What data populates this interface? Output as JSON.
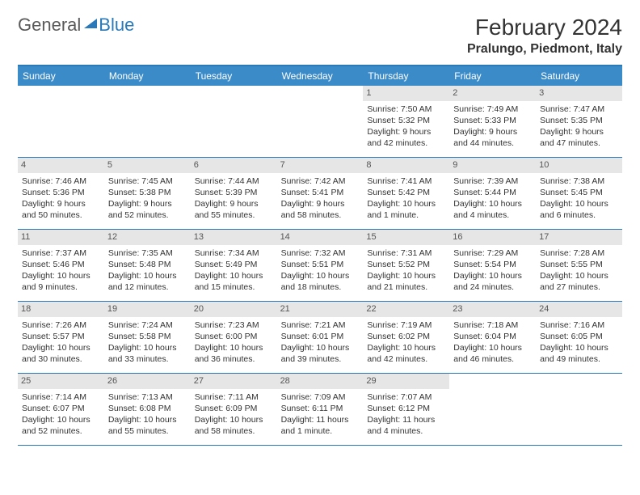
{
  "logo": {
    "text_gray": "General",
    "text_blue": "Blue"
  },
  "title": "February 2024",
  "location": "Pralungo, Piedmont, Italy",
  "colors": {
    "header_bg": "#3b8bc9",
    "header_border": "#2a7ab9",
    "daynum_bg": "#e6e6e6",
    "text": "#333333",
    "logo_gray": "#5a5a5a",
    "logo_blue": "#2a7ab9"
  },
  "day_names": [
    "Sunday",
    "Monday",
    "Tuesday",
    "Wednesday",
    "Thursday",
    "Friday",
    "Saturday"
  ],
  "weeks": [
    [
      null,
      null,
      null,
      null,
      {
        "n": "1",
        "sunrise": "Sunrise: 7:50 AM",
        "sunset": "Sunset: 5:32 PM",
        "day1": "Daylight: 9 hours",
        "day2": "and 42 minutes."
      },
      {
        "n": "2",
        "sunrise": "Sunrise: 7:49 AM",
        "sunset": "Sunset: 5:33 PM",
        "day1": "Daylight: 9 hours",
        "day2": "and 44 minutes."
      },
      {
        "n": "3",
        "sunrise": "Sunrise: 7:47 AM",
        "sunset": "Sunset: 5:35 PM",
        "day1": "Daylight: 9 hours",
        "day2": "and 47 minutes."
      }
    ],
    [
      {
        "n": "4",
        "sunrise": "Sunrise: 7:46 AM",
        "sunset": "Sunset: 5:36 PM",
        "day1": "Daylight: 9 hours",
        "day2": "and 50 minutes."
      },
      {
        "n": "5",
        "sunrise": "Sunrise: 7:45 AM",
        "sunset": "Sunset: 5:38 PM",
        "day1": "Daylight: 9 hours",
        "day2": "and 52 minutes."
      },
      {
        "n": "6",
        "sunrise": "Sunrise: 7:44 AM",
        "sunset": "Sunset: 5:39 PM",
        "day1": "Daylight: 9 hours",
        "day2": "and 55 minutes."
      },
      {
        "n": "7",
        "sunrise": "Sunrise: 7:42 AM",
        "sunset": "Sunset: 5:41 PM",
        "day1": "Daylight: 9 hours",
        "day2": "and 58 minutes."
      },
      {
        "n": "8",
        "sunrise": "Sunrise: 7:41 AM",
        "sunset": "Sunset: 5:42 PM",
        "day1": "Daylight: 10 hours",
        "day2": "and 1 minute."
      },
      {
        "n": "9",
        "sunrise": "Sunrise: 7:39 AM",
        "sunset": "Sunset: 5:44 PM",
        "day1": "Daylight: 10 hours",
        "day2": "and 4 minutes."
      },
      {
        "n": "10",
        "sunrise": "Sunrise: 7:38 AM",
        "sunset": "Sunset: 5:45 PM",
        "day1": "Daylight: 10 hours",
        "day2": "and 6 minutes."
      }
    ],
    [
      {
        "n": "11",
        "sunrise": "Sunrise: 7:37 AM",
        "sunset": "Sunset: 5:46 PM",
        "day1": "Daylight: 10 hours",
        "day2": "and 9 minutes."
      },
      {
        "n": "12",
        "sunrise": "Sunrise: 7:35 AM",
        "sunset": "Sunset: 5:48 PM",
        "day1": "Daylight: 10 hours",
        "day2": "and 12 minutes."
      },
      {
        "n": "13",
        "sunrise": "Sunrise: 7:34 AM",
        "sunset": "Sunset: 5:49 PM",
        "day1": "Daylight: 10 hours",
        "day2": "and 15 minutes."
      },
      {
        "n": "14",
        "sunrise": "Sunrise: 7:32 AM",
        "sunset": "Sunset: 5:51 PM",
        "day1": "Daylight: 10 hours",
        "day2": "and 18 minutes."
      },
      {
        "n": "15",
        "sunrise": "Sunrise: 7:31 AM",
        "sunset": "Sunset: 5:52 PM",
        "day1": "Daylight: 10 hours",
        "day2": "and 21 minutes."
      },
      {
        "n": "16",
        "sunrise": "Sunrise: 7:29 AM",
        "sunset": "Sunset: 5:54 PM",
        "day1": "Daylight: 10 hours",
        "day2": "and 24 minutes."
      },
      {
        "n": "17",
        "sunrise": "Sunrise: 7:28 AM",
        "sunset": "Sunset: 5:55 PM",
        "day1": "Daylight: 10 hours",
        "day2": "and 27 minutes."
      }
    ],
    [
      {
        "n": "18",
        "sunrise": "Sunrise: 7:26 AM",
        "sunset": "Sunset: 5:57 PM",
        "day1": "Daylight: 10 hours",
        "day2": "and 30 minutes."
      },
      {
        "n": "19",
        "sunrise": "Sunrise: 7:24 AM",
        "sunset": "Sunset: 5:58 PM",
        "day1": "Daylight: 10 hours",
        "day2": "and 33 minutes."
      },
      {
        "n": "20",
        "sunrise": "Sunrise: 7:23 AM",
        "sunset": "Sunset: 6:00 PM",
        "day1": "Daylight: 10 hours",
        "day2": "and 36 minutes."
      },
      {
        "n": "21",
        "sunrise": "Sunrise: 7:21 AM",
        "sunset": "Sunset: 6:01 PM",
        "day1": "Daylight: 10 hours",
        "day2": "and 39 minutes."
      },
      {
        "n": "22",
        "sunrise": "Sunrise: 7:19 AM",
        "sunset": "Sunset: 6:02 PM",
        "day1": "Daylight: 10 hours",
        "day2": "and 42 minutes."
      },
      {
        "n": "23",
        "sunrise": "Sunrise: 7:18 AM",
        "sunset": "Sunset: 6:04 PM",
        "day1": "Daylight: 10 hours",
        "day2": "and 46 minutes."
      },
      {
        "n": "24",
        "sunrise": "Sunrise: 7:16 AM",
        "sunset": "Sunset: 6:05 PM",
        "day1": "Daylight: 10 hours",
        "day2": "and 49 minutes."
      }
    ],
    [
      {
        "n": "25",
        "sunrise": "Sunrise: 7:14 AM",
        "sunset": "Sunset: 6:07 PM",
        "day1": "Daylight: 10 hours",
        "day2": "and 52 minutes."
      },
      {
        "n": "26",
        "sunrise": "Sunrise: 7:13 AM",
        "sunset": "Sunset: 6:08 PM",
        "day1": "Daylight: 10 hours",
        "day2": "and 55 minutes."
      },
      {
        "n": "27",
        "sunrise": "Sunrise: 7:11 AM",
        "sunset": "Sunset: 6:09 PM",
        "day1": "Daylight: 10 hours",
        "day2": "and 58 minutes."
      },
      {
        "n": "28",
        "sunrise": "Sunrise: 7:09 AM",
        "sunset": "Sunset: 6:11 PM",
        "day1": "Daylight: 11 hours",
        "day2": "and 1 minute."
      },
      {
        "n": "29",
        "sunrise": "Sunrise: 7:07 AM",
        "sunset": "Sunset: 6:12 PM",
        "day1": "Daylight: 11 hours",
        "day2": "and 4 minutes."
      },
      null,
      null
    ]
  ]
}
